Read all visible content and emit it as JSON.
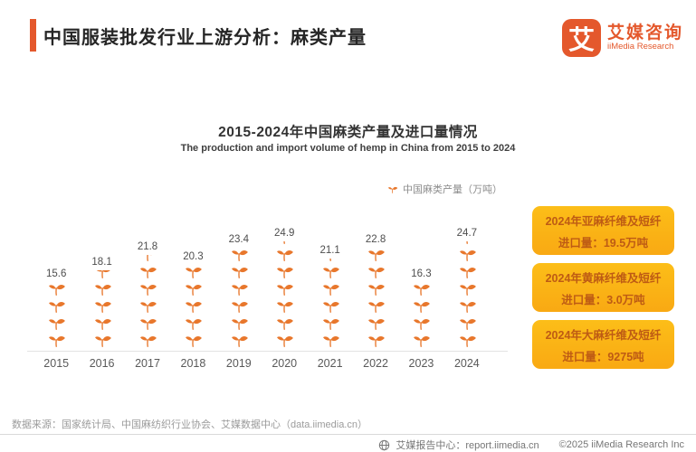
{
  "header": {
    "title": "中国服装批发行业上游分析：麻类产量"
  },
  "logo": {
    "mark": "艾",
    "name_cn": "艾媒咨询",
    "name_en": "iiMedia Research"
  },
  "chart": {
    "title": "2015-2024年中国麻类产量及进口量情况",
    "subtitle": "The production and import volume of hemp in China from 2015 to 2024",
    "legend_label": "中国麻类产量（万吨）"
  },
  "chart_data": {
    "type": "bar",
    "subtype": "pictograph",
    "title": "2015-2024年中国麻类产量及进口量情况",
    "subtitle": "The production and import volume of hemp in China from 2015 to 2024",
    "unit": "万吨",
    "categories": [
      "2015",
      "2016",
      "2017",
      "2018",
      "2019",
      "2020",
      "2021",
      "2022",
      "2023",
      "2024"
    ],
    "values": [
      15.6,
      18.1,
      21.8,
      20.3,
      23.4,
      24.9,
      21.1,
      22.8,
      16.3,
      24.7
    ],
    "icons": [
      {
        "full": 4,
        "partial": 0
      },
      {
        "full": 4,
        "partial": 0.6
      },
      {
        "full": 5,
        "partial": 0.45
      },
      {
        "full": 5,
        "partial": 0
      },
      {
        "full": 6,
        "partial": 0
      },
      {
        "full": 6,
        "partial": 0.2
      },
      {
        "full": 5,
        "partial": 0.2
      },
      {
        "full": 6,
        "partial": 0
      },
      {
        "full": 4,
        "partial": 0
      },
      {
        "full": 6,
        "partial": 0.2
      }
    ],
    "legend": [
      "中国麻类产量（万吨）"
    ],
    "legend_position": "top-right",
    "grid": false,
    "ylim": [
      0,
      26
    ]
  },
  "callouts": [
    {
      "line1": "2024年亚麻纤维及短纤",
      "line2": "进口量：19.5万吨"
    },
    {
      "line1": "2024年黄麻纤维及短纤",
      "line2": "进口量：3.0万吨"
    },
    {
      "line1": "2024年大麻纤维及短纤",
      "line2": "进口量：9275吨"
    }
  ],
  "source": "数据来源：国家统计局、中国麻纺织行业协会、艾媒数据中心（data.iimedia.cn）",
  "footer": {
    "center_label": "艾媒报告中心：report.iimedia.cn",
    "copyright": "©2025  iiMedia Research  Inc"
  },
  "colors": {
    "accent": "#E4582C",
    "leaf": "#E8772C",
    "callout_bg": "#FBB30F",
    "callout_text": "#BE5B14"
  }
}
